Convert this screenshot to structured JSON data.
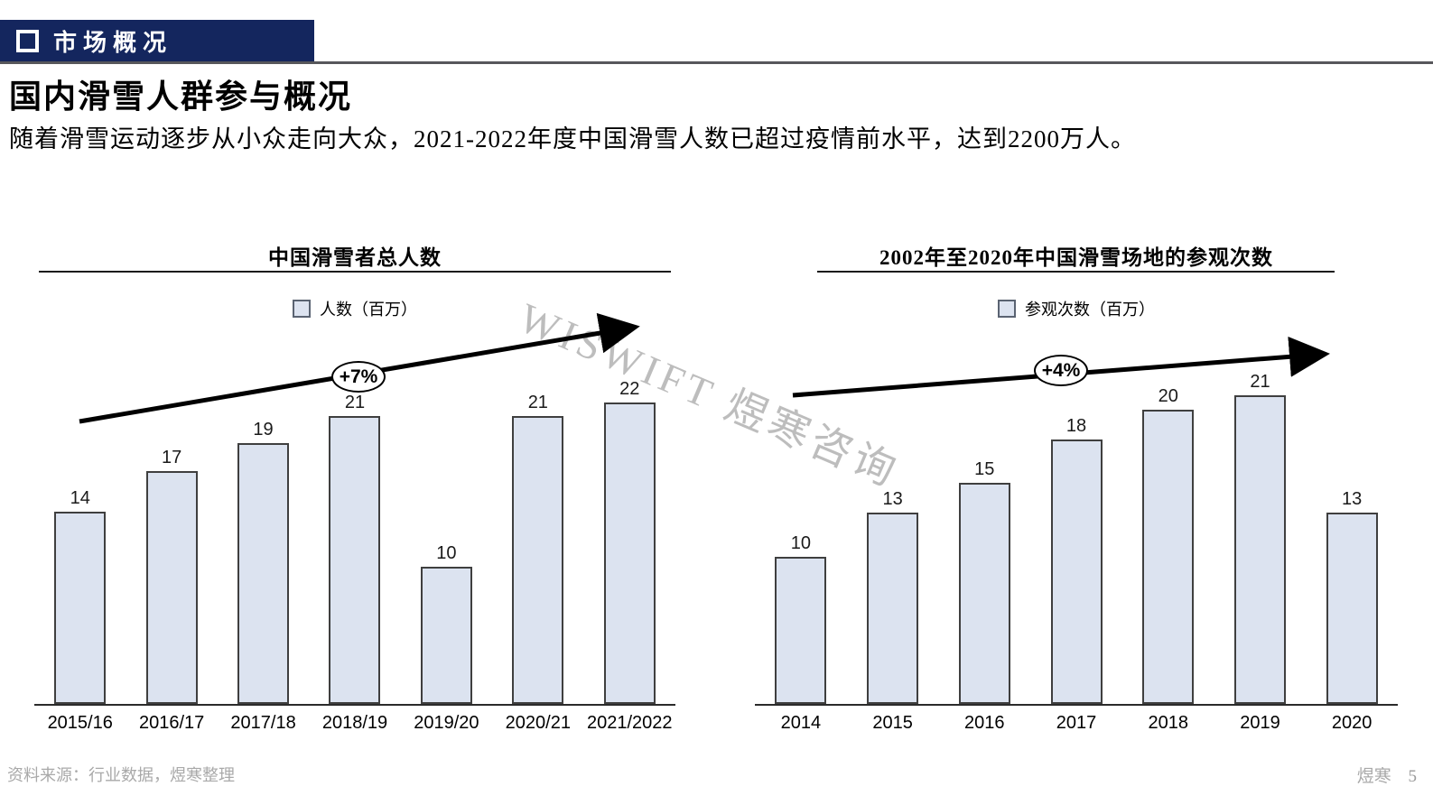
{
  "header": {
    "icon": "square-outline-icon",
    "banner_label": "市场概况"
  },
  "page": {
    "title": "国内滑雪人群参与概况",
    "subtitle": "随着滑雪运动逐步从小众走向大众，2021-2022年度中国滑雪人数已超过疫情前水平，达到2200万人。"
  },
  "watermark": "WISWIFT 煜寒咨询",
  "colors": {
    "banner_navy": "#14265e",
    "bar_fill": "#dce3f0",
    "bar_border": "#3f3f3f",
    "footer_gray": "#a9a9a9"
  },
  "chart_data": [
    {
      "type": "bar",
      "title": "中国滑雪者总人数",
      "legend": "人数（百万）",
      "legend_position": "top",
      "grid": false,
      "categories": [
        "2015/16",
        "2016/17",
        "2017/18",
        "2018/19",
        "2019/20",
        "2020/21",
        "2021/2022"
      ],
      "values": [
        14,
        17,
        19,
        21,
        10,
        21,
        22
      ],
      "annotation": "+7%",
      "ylim": [
        0,
        25
      ],
      "xlabel": "",
      "ylabel": "人数（百万）"
    },
    {
      "type": "bar",
      "title": "2002年至2020年中国滑雪场地的参观次数",
      "legend": "参观次数（百万）",
      "legend_position": "top",
      "grid": false,
      "categories": [
        "2014",
        "2015",
        "2016",
        "2017",
        "2018",
        "2019",
        "2020"
      ],
      "values": [
        10,
        13,
        15,
        18,
        20,
        21,
        13
      ],
      "annotation": "+4%",
      "ylim": [
        0,
        25
      ],
      "xlabel": "",
      "ylabel": "参观次数（百万）"
    }
  ],
  "footer": {
    "source": "资料来源：行业数据，煜寒整理",
    "brand": "煜寒",
    "page_number": "5"
  }
}
